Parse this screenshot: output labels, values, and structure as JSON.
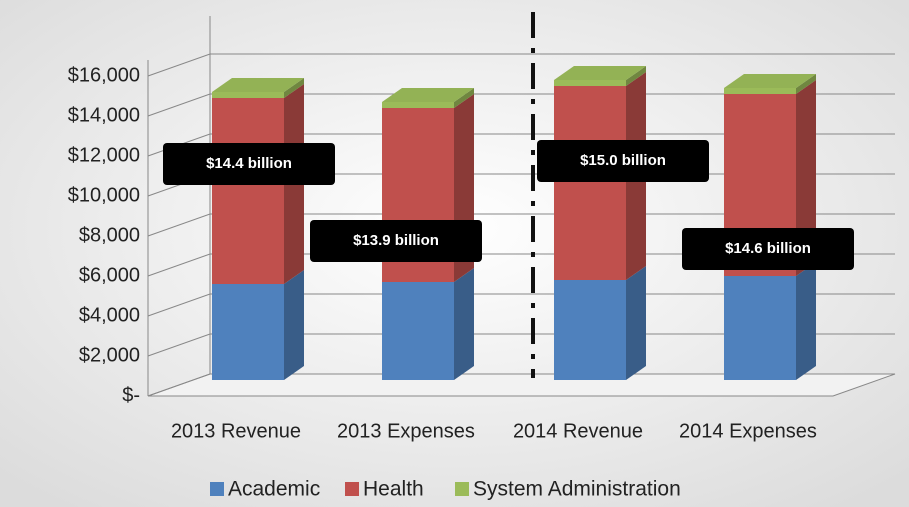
{
  "chart_data": {
    "type": "bar3d_stacked",
    "categories": [
      "2013 Revenue",
      "2013 Expenses",
      "2014 Revenue",
      "2014 Expenses"
    ],
    "series": [
      {
        "name": "Academic",
        "color": "#4f81bd",
        "values": [
          4800,
          4900,
          5000,
          5200
        ]
      },
      {
        "name": "Health",
        "color": "#c0504d",
        "values": [
          9300,
          8700,
          9700,
          9100
        ]
      },
      {
        "name": "System Administration",
        "color": "#9bbb59",
        "values": [
          300,
          300,
          300,
          300
        ]
      }
    ],
    "ylim": [
      0,
      16000
    ],
    "yticks": [
      {
        "value": 0,
        "label": "$-"
      },
      {
        "value": 2000,
        "label": "$2,000"
      },
      {
        "value": 4000,
        "label": "$4,000"
      },
      {
        "value": 6000,
        "label": "$6,000"
      },
      {
        "value": 8000,
        "label": "$8,000"
      },
      {
        "value": 10000,
        "label": "$10,000"
      },
      {
        "value": 12000,
        "label": "$12,000"
      },
      {
        "value": 14000,
        "label": "$14,000"
      },
      {
        "value": 16000,
        "label": "$16,000"
      }
    ],
    "annotations": [
      "$14.4 billion",
      "$13.9 billion",
      "$15.0 billion",
      "$14.6 billion"
    ],
    "grid": true,
    "legend": "bottom"
  }
}
